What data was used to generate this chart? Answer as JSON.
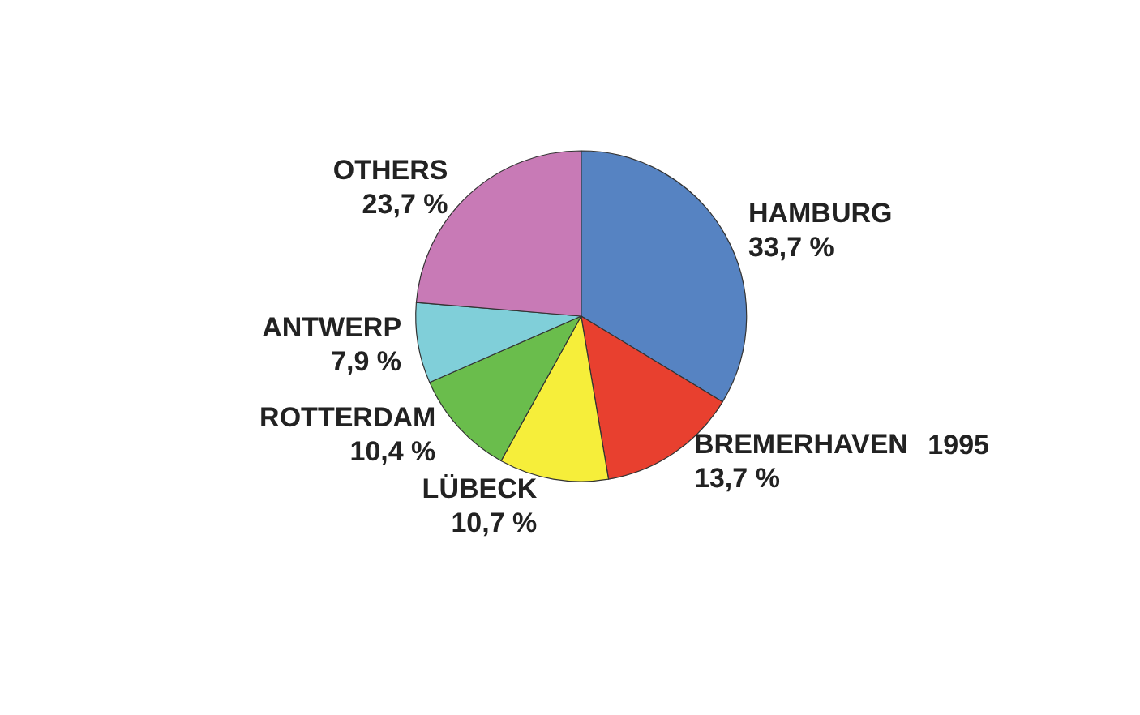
{
  "chart_data": {
    "type": "pie",
    "categories": [
      "HAMBURG",
      "BREMERHAVEN",
      "LÜBECK",
      "ROTTERDAM",
      "ANTWERP",
      "OTHERS"
    ],
    "values": [
      33.7,
      13.7,
      10.7,
      10.4,
      7.9,
      23.7
    ],
    "value_labels": [
      "33,7 %",
      "13,7 %",
      "10,7 %",
      "10,4 %",
      "7,9 %",
      "23,7 %"
    ],
    "colors": [
      "#5683c2",
      "#e8402f",
      "#f6ee3a",
      "#6abd4c",
      "#80cfd9",
      "#c87ab6"
    ],
    "annotations": [
      "1995"
    ],
    "legend": false
  }
}
